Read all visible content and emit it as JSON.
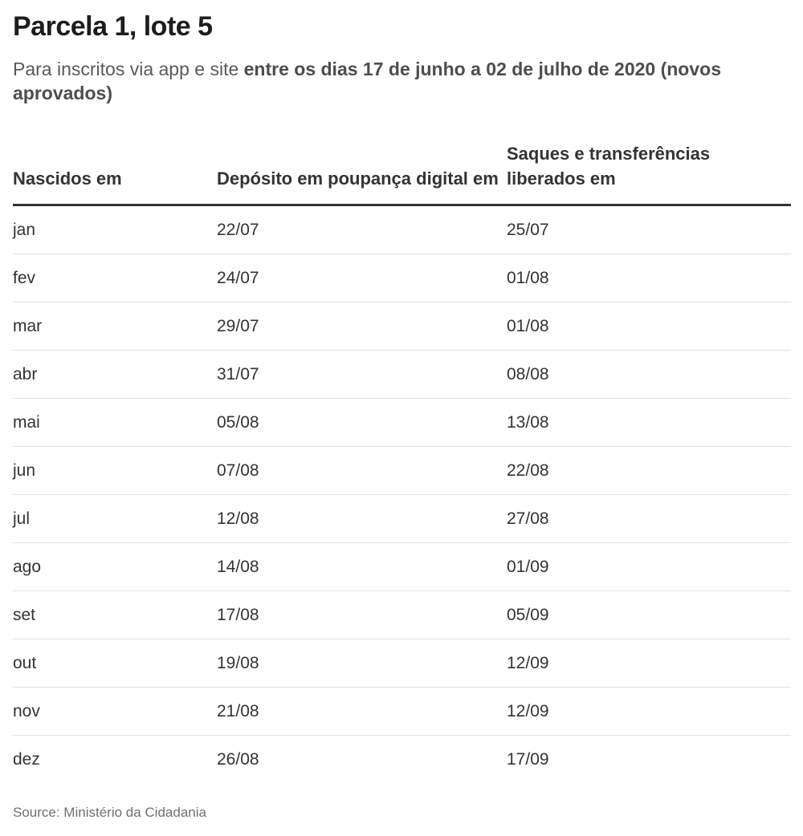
{
  "title": "Parcela 1, lote 5",
  "subtitle": {
    "plain": "Para inscritos via app e site ",
    "bold": "entre os dias 17 de junho a 02 de julho de 2020 (novos aprovados)"
  },
  "chart_data": {
    "type": "table",
    "title": "Parcela 1, lote 5",
    "subtitle": "Para inscritos via app e site entre os dias 17 de junho a 02 de julho de 2020 (novos aprovados)",
    "columns": [
      "Nascidos em",
      "Depósito em poupança digital em",
      "Saques e transferências liberados em"
    ],
    "rows": [
      [
        "jan",
        "22/07",
        "25/07"
      ],
      [
        "fev",
        "24/07",
        "01/08"
      ],
      [
        "mar",
        "29/07",
        "01/08"
      ],
      [
        "abr",
        "31/07",
        "08/08"
      ],
      [
        "mai",
        "05/08",
        "13/08"
      ],
      [
        "jun",
        "07/08",
        "22/08"
      ],
      [
        "jul",
        "12/08",
        "27/08"
      ],
      [
        "ago",
        "14/08",
        "01/09"
      ],
      [
        "set",
        "17/08",
        "05/09"
      ],
      [
        "out",
        "19/08",
        "12/09"
      ],
      [
        "nov",
        "21/08",
        "12/09"
      ],
      [
        "dez",
        "26/08",
        "17/09"
      ]
    ],
    "source": "Source: Ministério da Cidadania"
  },
  "source": "Source: Ministério da Cidadania"
}
